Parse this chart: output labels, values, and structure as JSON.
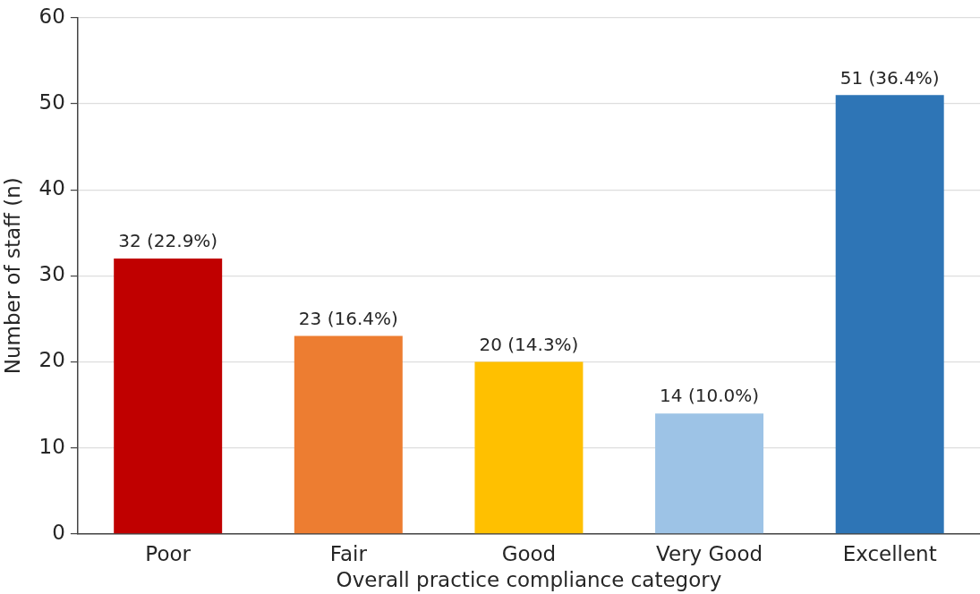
{
  "chart_data": {
    "type": "bar",
    "xlabel": "Overall practice compliance category",
    "ylabel": "Number of staff (n)",
    "categories": [
      "Poor",
      "Fair",
      "Good",
      "Very Good",
      "Excellent"
    ],
    "values": [
      32,
      23,
      20,
      14,
      51
    ],
    "colors": [
      "#c00000",
      "#ed7d31",
      "#ffc000",
      "#9dc3e6",
      "#2e75b6"
    ],
    "value_labels": [
      "32 (22.9%)",
      "23 (16.4%)",
      "20 (14.3%)",
      "14 (10.0%)",
      "51 (36.4%)"
    ],
    "ylim": [
      0,
      60
    ],
    "yticks": [
      0,
      10,
      20,
      30,
      40,
      50,
      60
    ],
    "grid": "y",
    "legend": false
  }
}
